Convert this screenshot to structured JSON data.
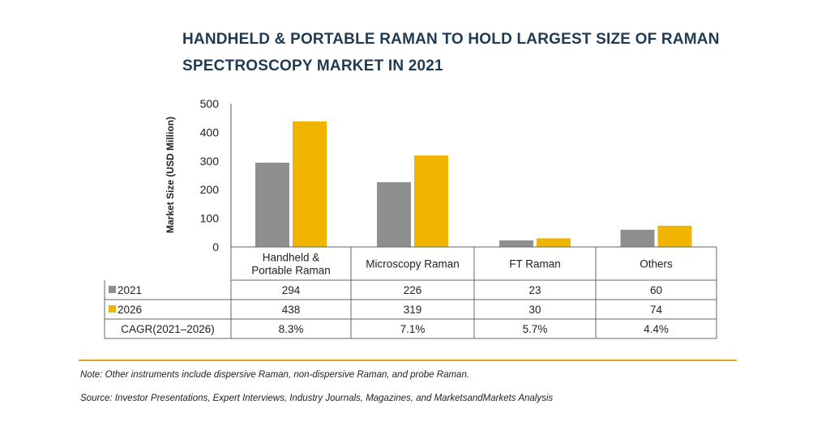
{
  "title": {
    "line1": "HANDHELD & PORTABLE RAMAN TO HOLD LARGEST SIZE OF RAMAN",
    "line2": "SPECTROSCOPY MARKET IN 2021"
  },
  "chart_data": {
    "type": "bar",
    "ylabel": "Market Size (USD Million)",
    "ylim": [
      0,
      500
    ],
    "yticks": [
      "0",
      "100",
      "200",
      "300",
      "400",
      "500"
    ],
    "categories": [
      [
        "Handheld &",
        "Portable Raman"
      ],
      [
        "Microscopy Raman"
      ],
      [
        "FT Raman"
      ],
      [
        "Others"
      ]
    ],
    "series": [
      {
        "name": "2021",
        "color": "#8f8f8f",
        "values": [
          294,
          226,
          23,
          60
        ]
      },
      {
        "name": "2026",
        "color": "#f0b400",
        "values": [
          438,
          319,
          30,
          74
        ]
      }
    ],
    "table_rows": [
      {
        "label": "2021",
        "swatch": "#8f8f8f",
        "cells": [
          "294",
          "226",
          "23",
          "60"
        ]
      },
      {
        "label": "2026",
        "swatch": "#f0b400",
        "cells": [
          "438",
          "319",
          "30",
          "74"
        ]
      },
      {
        "label": "CAGR(2021–2026)",
        "swatch": "",
        "cells": [
          "8.3%",
          "7.1%",
          "5.7%",
          "4.4%"
        ]
      }
    ]
  },
  "notes": {
    "note": "Note: Other instruments include dispersive Raman, non-dispersive Raman, and probe Raman.",
    "source": "Source: Investor Presentations, Expert Interviews, Industry Journals, Magazines, and MarketsandMarkets Analysis"
  }
}
